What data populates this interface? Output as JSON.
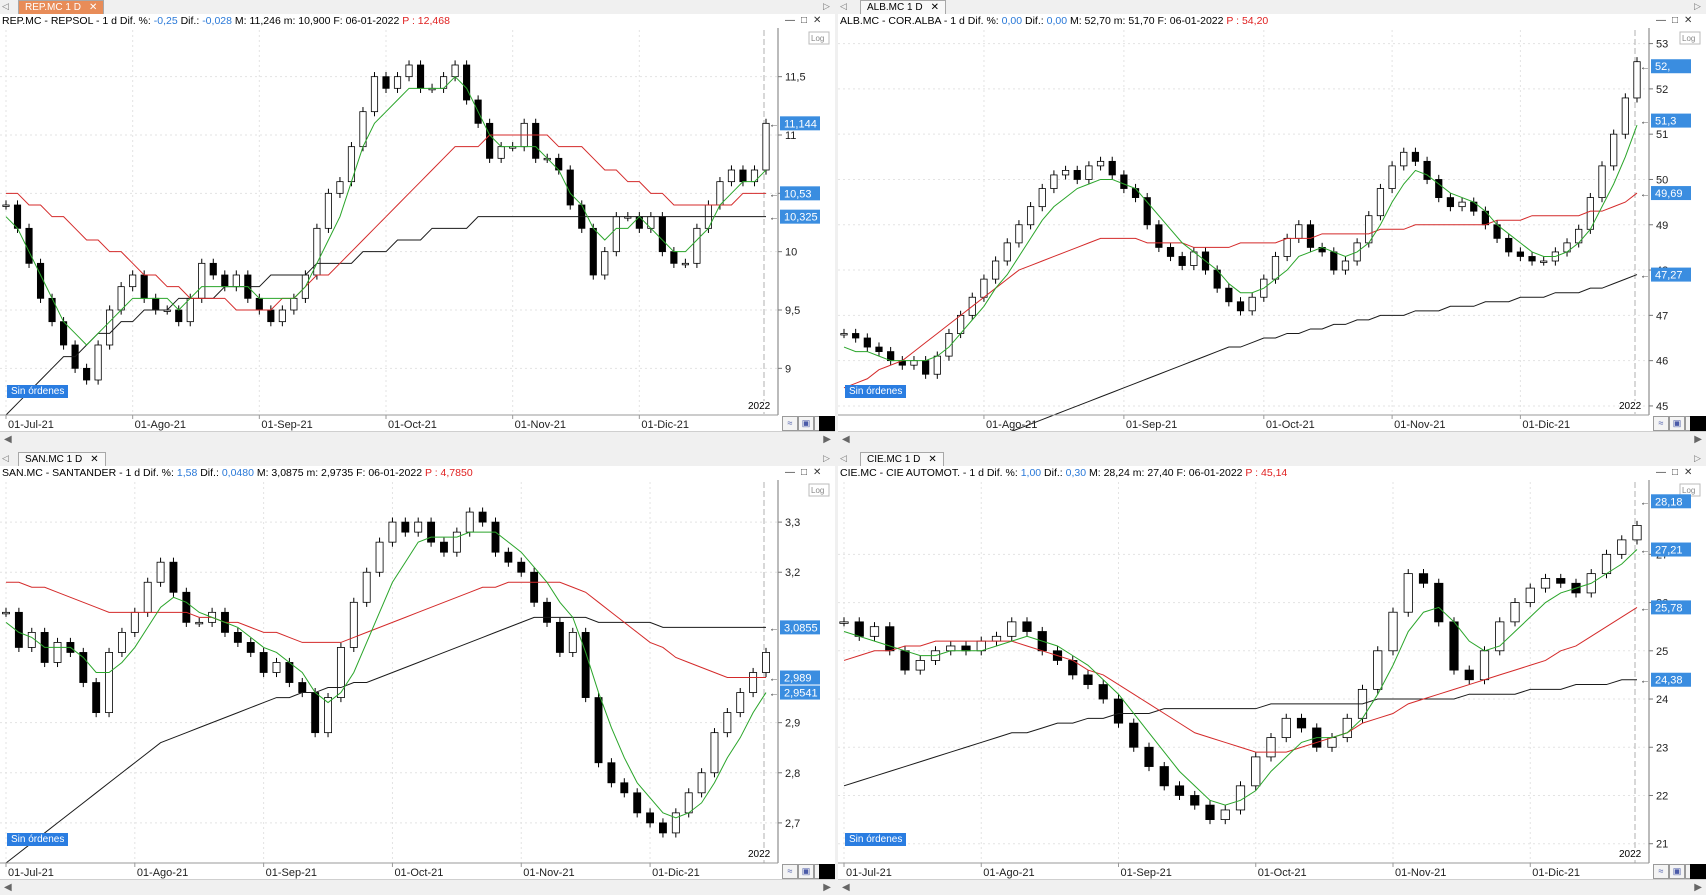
{
  "panels": [
    {
      "tab_label": "REP.MC 1 D",
      "tab_active": true,
      "info": {
        "name": "REP.MC - REPSOL - ",
        "period": " 1 d",
        "difp_label": "  Dif. %: ",
        "difp": "-0,25",
        "dif_label": "  Dif.: ",
        "dif": "-0,028",
        "mm": "  M: 11,246  m: 10,900  F: 06-01-2022  ",
        "p_label": "P : ",
        "p": "12,468"
      },
      "order_badge": "Sin órdenes",
      "year_label": "2022",
      "log_label": "Log",
      "x_ticks": [
        "01-Jul-21",
        "01-Ago-21",
        "01-Sep-21",
        "01-Oct-21",
        "01-Nov-21",
        "01-Dic-21"
      ],
      "y_ticks": [
        "11,5",
        "11",
        "10,5",
        "10",
        "9,5",
        "9"
      ],
      "price_tags": [
        "11,144",
        "10,53",
        "10,325"
      ]
    },
    {
      "tab_label": "ALB.MC 1 D",
      "tab_active": false,
      "info": {
        "name": "ALB.MC - COR.ALBA - ",
        "period": " 1 d",
        "difp_label": "  Dif. %: ",
        "difp": "0,00",
        "dif_label": "  Dif.: ",
        "dif": "0,00",
        "mm": "  M: 52,70  m: 51,70  F: 06-01-2022  ",
        "p_label": "P : ",
        "p": "54,20"
      },
      "order_badge": "Sin órdenes",
      "year_label": "2022",
      "log_label": "Log",
      "x_ticks": [
        "01-Ago-21",
        "01-Sep-21",
        "01-Oct-21",
        "01-Nov-21",
        "01-Dic-21"
      ],
      "y_ticks": [
        "53",
        "52",
        "51",
        "50",
        "49",
        "48",
        "47",
        "46",
        "45"
      ],
      "price_tags": [
        "52,",
        "51,3",
        "49,69",
        "47,27"
      ]
    },
    {
      "tab_label": "SAN.MC 1 D",
      "tab_active": false,
      "info": {
        "name": "SAN.MC - SANTANDER - ",
        "period": " 1 d",
        "difp_label": "  Dif. %: ",
        "difp": "1,58",
        "dif_label": "  Dif.: ",
        "dif": "0,0480",
        "mm": "  M: 3,0875  m: 2,9735  F: 06-01-2022  ",
        "p_label": "P : ",
        "p": "4,7850"
      },
      "order_badge": "Sin órdenes",
      "year_label": "2022",
      "log_label": "Log",
      "x_ticks": [
        "01-Jul-21",
        "01-Ago-21",
        "01-Sep-21",
        "01-Oct-21",
        "01-Nov-21",
        "01-Dic-21"
      ],
      "y_ticks": [
        "3,3",
        "3,2",
        "2,9",
        "2,8",
        "2,7"
      ],
      "price_tags": [
        "3,0855",
        "2,989",
        "2,9541"
      ]
    },
    {
      "tab_label": "CIE.MC 1 D",
      "tab_active": false,
      "info": {
        "name": "CIE.MC - CIE AUTOMOT. - ",
        "period": " 1 d",
        "difp_label": "  Dif. %: ",
        "difp": "1,00",
        "dif_label": "  Dif.: ",
        "dif": "0,30",
        "mm": "  M: 28,24  m: 27,40  F: 06-01-2022  ",
        "p_label": "P : ",
        "p": "45,14"
      },
      "order_badge": "Sin órdenes",
      "year_label": "2022",
      "log_label": "Log",
      "x_ticks": [
        "01-Jul-21",
        "01-Ago-21",
        "01-Sep-21",
        "01-Oct-21",
        "01-Nov-21",
        "01-Dic-21"
      ],
      "y_ticks": [
        "27",
        "26",
        "25",
        "24",
        "23",
        "22",
        "21"
      ],
      "price_tags": [
        "28,18",
        "27,21",
        "25,78",
        "24,38"
      ]
    }
  ],
  "chart_data": [
    {
      "type": "candlestick",
      "title": "REP.MC - REPSOL",
      "ylim": [
        8.6,
        11.9
      ],
      "y_ticks": [
        11.5,
        11,
        10.5,
        10,
        9.5,
        9
      ],
      "log_scale_option": true,
      "closes": [
        10.4,
        10.2,
        9.9,
        9.6,
        9.4,
        9.2,
        9.0,
        8.9,
        9.2,
        9.5,
        9.7,
        9.8,
        9.6,
        9.5,
        9.5,
        9.4,
        9.6,
        9.9,
        9.8,
        9.7,
        9.8,
        9.6,
        9.5,
        9.4,
        9.5,
        9.6,
        9.8,
        10.2,
        10.5,
        10.6,
        10.9,
        11.2,
        11.5,
        11.4,
        11.5,
        11.6,
        11.4,
        11.4,
        11.5,
        11.6,
        11.3,
        11.1,
        10.8,
        10.9,
        10.9,
        11.1,
        10.8,
        10.8,
        10.7,
        10.4,
        10.2,
        9.8,
        10.0,
        10.3,
        10.3,
        10.2,
        10.3,
        10.0,
        9.9,
        9.9,
        10.2,
        10.4,
        10.6,
        10.7,
        10.6,
        10.7,
        11.1
      ],
      "ma_short": [
        10.3,
        10.2,
        10.0,
        9.8,
        9.6,
        9.4,
        9.3,
        9.2,
        9.3,
        9.4,
        9.5,
        9.6,
        9.6,
        9.6,
        9.6,
        9.5,
        9.6,
        9.7,
        9.7,
        9.7,
        9.7,
        9.7,
        9.6,
        9.6,
        9.6,
        9.6,
        9.7,
        9.9,
        10.1,
        10.3,
        10.6,
        10.9,
        11.1,
        11.2,
        11.3,
        11.4,
        11.4,
        11.4,
        11.4,
        11.5,
        11.4,
        11.2,
        11.0,
        10.9,
        10.9,
        10.9,
        10.9,
        10.8,
        10.7,
        10.5,
        10.4,
        10.2,
        10.1,
        10.2,
        10.2,
        10.3,
        10.2,
        10.1,
        10.0,
        10.0,
        10.1,
        10.2,
        10.4,
        10.5,
        10.6,
        10.6,
        10.7
      ],
      "ma_mid": [
        10.5,
        10.5,
        10.4,
        10.4,
        10.3,
        10.3,
        10.2,
        10.1,
        10.1,
        10.0,
        10.0,
        9.9,
        9.8,
        9.8,
        9.7,
        9.7,
        9.6,
        9.6,
        9.6,
        9.6,
        9.5,
        9.5,
        9.5,
        9.5,
        9.6,
        9.6,
        9.7,
        9.8,
        9.8,
        9.9,
        10.0,
        10.1,
        10.2,
        10.3,
        10.4,
        10.5,
        10.6,
        10.7,
        10.8,
        10.9,
        10.9,
        10.9,
        11.0,
        11.0,
        11.0,
        11.0,
        11.0,
        11.0,
        10.9,
        10.9,
        10.9,
        10.8,
        10.7,
        10.7,
        10.6,
        10.6,
        10.5,
        10.5,
        10.4,
        10.4,
        10.4,
        10.4,
        10.4,
        10.4,
        10.5,
        10.5,
        10.5
      ],
      "ma_long": [
        8.6,
        8.7,
        8.8,
        8.9,
        9.0,
        9.1,
        9.1,
        9.2,
        9.3,
        9.3,
        9.4,
        9.4,
        9.5,
        9.5,
        9.5,
        9.6,
        9.6,
        9.6,
        9.6,
        9.7,
        9.7,
        9.7,
        9.7,
        9.8,
        9.8,
        9.8,
        9.8,
        9.9,
        9.9,
        9.9,
        9.9,
        10.0,
        10.0,
        10.0,
        10.1,
        10.1,
        10.1,
        10.2,
        10.2,
        10.2,
        10.2,
        10.3,
        10.3,
        10.3,
        10.3,
        10.3,
        10.3,
        10.3,
        10.3,
        10.3,
        10.3,
        10.3,
        10.3,
        10.3,
        10.3,
        10.3,
        10.3,
        10.3,
        10.3,
        10.3,
        10.3,
        10.3,
        10.3,
        10.3,
        10.3,
        10.3,
        10.3
      ],
      "x_ticks": [
        "01-Jul-21",
        "01-Ago-21",
        "01-Sep-21",
        "01-Oct-21",
        "01-Nov-21",
        "01-Dic-21"
      ],
      "x_tick_index": [
        0,
        11,
        22,
        33,
        44,
        55
      ]
    },
    {
      "type": "candlestick",
      "title": "ALB.MC - COR.ALBA",
      "ylim": [
        44.8,
        53.3
      ],
      "y_ticks": [
        53,
        52,
        51,
        50,
        49,
        48,
        47,
        46,
        45
      ],
      "log_scale_option": true,
      "closes": [
        46.6,
        46.5,
        46.3,
        46.2,
        46.0,
        45.9,
        46.0,
        45.7,
        46.1,
        46.6,
        47.0,
        47.4,
        47.8,
        48.2,
        48.6,
        49.0,
        49.4,
        49.8,
        50.1,
        50.2,
        50.0,
        50.3,
        50.4,
        50.1,
        49.8,
        49.6,
        49.0,
        48.5,
        48.3,
        48.1,
        48.4,
        48.0,
        47.6,
        47.3,
        47.1,
        47.4,
        47.8,
        48.3,
        48.7,
        49.0,
        48.5,
        48.4,
        48.0,
        48.2,
        48.6,
        49.2,
        49.8,
        50.3,
        50.6,
        50.4,
        50.0,
        49.6,
        49.4,
        49.5,
        49.3,
        49.0,
        48.7,
        48.4,
        48.3,
        48.2,
        48.2,
        48.4,
        48.6,
        48.9,
        49.6,
        50.3,
        51.0,
        51.8,
        52.6
      ],
      "ma_short": [
        46.3,
        46.2,
        46.2,
        46.1,
        46.0,
        46.0,
        46.0,
        46.0,
        46.1,
        46.3,
        46.6,
        46.9,
        47.2,
        47.6,
        47.9,
        48.3,
        48.7,
        49.1,
        49.4,
        49.6,
        49.8,
        49.9,
        50.0,
        50.0,
        49.9,
        49.8,
        49.5,
        49.2,
        48.9,
        48.6,
        48.4,
        48.2,
        48.0,
        47.7,
        47.5,
        47.5,
        47.6,
        47.8,
        48.0,
        48.3,
        48.4,
        48.5,
        48.4,
        48.3,
        48.4,
        48.6,
        49.0,
        49.5,
        49.9,
        50.2,
        50.1,
        49.9,
        49.7,
        49.6,
        49.5,
        49.3,
        49.0,
        48.8,
        48.6,
        48.4,
        48.3,
        48.3,
        48.4,
        48.6,
        48.9,
        49.4,
        49.9,
        50.5,
        51.2
      ],
      "ma_mid": [
        45.4,
        45.5,
        45.6,
        45.8,
        45.9,
        46.0,
        46.2,
        46.4,
        46.6,
        46.8,
        47.0,
        47.2,
        47.4,
        47.6,
        47.8,
        48.0,
        48.1,
        48.2,
        48.3,
        48.4,
        48.5,
        48.6,
        48.7,
        48.7,
        48.7,
        48.7,
        48.6,
        48.6,
        48.6,
        48.6,
        48.5,
        48.5,
        48.5,
        48.5,
        48.6,
        48.6,
        48.6,
        48.6,
        48.7,
        48.7,
        48.7,
        48.8,
        48.8,
        48.8,
        48.8,
        48.8,
        48.9,
        48.9,
        48.9,
        49.0,
        49.0,
        49.0,
        49.0,
        49.0,
        49.0,
        49.0,
        49.1,
        49.1,
        49.1,
        49.2,
        49.2,
        49.2,
        49.2,
        49.2,
        49.3,
        49.3,
        49.4,
        49.5,
        49.7
      ],
      "ma_long": [
        43.0,
        43.1,
        43.2,
        43.3,
        43.4,
        43.5,
        43.6,
        43.7,
        43.8,
        43.9,
        44.0,
        44.1,
        44.2,
        44.3,
        44.4,
        44.5,
        44.6,
        44.7,
        44.8,
        44.9,
        45.0,
        45.1,
        45.2,
        45.3,
        45.4,
        45.5,
        45.6,
        45.7,
        45.8,
        45.9,
        46.0,
        46.1,
        46.2,
        46.3,
        46.3,
        46.4,
        46.5,
        46.5,
        46.6,
        46.6,
        46.7,
        46.7,
        46.8,
        46.8,
        46.9,
        46.9,
        47.0,
        47.0,
        47.0,
        47.1,
        47.1,
        47.1,
        47.2,
        47.2,
        47.2,
        47.3,
        47.3,
        47.3,
        47.4,
        47.4,
        47.4,
        47.5,
        47.5,
        47.5,
        47.6,
        47.6,
        47.7,
        47.8,
        47.9
      ],
      "x_ticks": [
        "01-Ago-21",
        "01-Sep-21",
        "01-Oct-21",
        "01-Nov-21",
        "01-Dic-21"
      ],
      "x_tick_index": [
        12,
        24,
        36,
        47,
        58
      ]
    },
    {
      "type": "candlestick",
      "title": "SAN.MC - SANTANDER",
      "ylim": [
        2.62,
        3.38
      ],
      "y_ticks": [
        3.3,
        3.2,
        2.9,
        2.8,
        2.7
      ],
      "log_scale_option": true,
      "closes": [
        3.12,
        3.05,
        3.08,
        3.02,
        3.06,
        3.04,
        2.98,
        2.92,
        3.04,
        3.08,
        3.12,
        3.18,
        3.22,
        3.16,
        3.1,
        3.1,
        3.12,
        3.08,
        3.06,
        3.04,
        3.0,
        3.02,
        2.98,
        2.96,
        2.88,
        2.95,
        3.05,
        3.14,
        3.2,
        3.26,
        3.3,
        3.28,
        3.3,
        3.26,
        3.24,
        3.28,
        3.32,
        3.3,
        3.24,
        3.22,
        3.2,
        3.14,
        3.1,
        3.04,
        3.08,
        2.95,
        2.82,
        2.78,
        2.76,
        2.72,
        2.7,
        2.68,
        2.72,
        2.76,
        2.8,
        2.88,
        2.92,
        2.96,
        3.0,
        3.04
      ],
      "ma_short": [
        3.1,
        3.08,
        3.07,
        3.05,
        3.05,
        3.05,
        3.03,
        3.0,
        3.0,
        3.02,
        3.05,
        3.09,
        3.13,
        3.15,
        3.14,
        3.12,
        3.11,
        3.1,
        3.09,
        3.07,
        3.05,
        3.04,
        3.02,
        3.0,
        2.96,
        2.94,
        2.96,
        3.0,
        3.06,
        3.12,
        3.18,
        3.22,
        3.26,
        3.27,
        3.27,
        3.27,
        3.28,
        3.28,
        3.28,
        3.26,
        3.24,
        3.21,
        3.18,
        3.14,
        3.11,
        3.04,
        2.96,
        2.89,
        2.83,
        2.78,
        2.75,
        2.72,
        2.71,
        2.72,
        2.74,
        2.78,
        2.83,
        2.87,
        2.92,
        2.96
      ],
      "ma_mid": [
        3.18,
        3.18,
        3.17,
        3.17,
        3.16,
        3.15,
        3.14,
        3.13,
        3.12,
        3.12,
        3.12,
        3.12,
        3.12,
        3.12,
        3.12,
        3.11,
        3.11,
        3.1,
        3.1,
        3.09,
        3.08,
        3.08,
        3.07,
        3.06,
        3.06,
        3.06,
        3.06,
        3.07,
        3.08,
        3.09,
        3.1,
        3.11,
        3.12,
        3.13,
        3.14,
        3.15,
        3.16,
        3.17,
        3.17,
        3.18,
        3.18,
        3.18,
        3.18,
        3.18,
        3.17,
        3.16,
        3.14,
        3.12,
        3.1,
        3.08,
        3.06,
        3.05,
        3.03,
        3.02,
        3.01,
        3.0,
        2.99,
        2.99,
        2.99,
        2.99
      ],
      "ma_long": [
        2.62,
        2.64,
        2.66,
        2.68,
        2.7,
        2.72,
        2.74,
        2.76,
        2.78,
        2.8,
        2.82,
        2.84,
        2.86,
        2.87,
        2.88,
        2.89,
        2.9,
        2.91,
        2.92,
        2.93,
        2.94,
        2.95,
        2.95,
        2.96,
        2.96,
        2.97,
        2.97,
        2.98,
        2.98,
        2.99,
        3.0,
        3.01,
        3.02,
        3.03,
        3.04,
        3.05,
        3.06,
        3.07,
        3.08,
        3.09,
        3.1,
        3.11,
        3.11,
        3.11,
        3.11,
        3.11,
        3.1,
        3.1,
        3.1,
        3.1,
        3.1,
        3.09,
        3.09,
        3.09,
        3.09,
        3.09,
        3.09,
        3.09,
        3.09,
        3.09
      ],
      "x_ticks": [
        "01-Jul-21",
        "01-Ago-21",
        "01-Sep-21",
        "01-Oct-21",
        "01-Nov-21",
        "01-Dic-21"
      ],
      "x_tick_index": [
        0,
        10,
        20,
        30,
        40,
        50
      ]
    },
    {
      "type": "candlestick",
      "title": "CIE.MC - CIE AUTOMOT.",
      "ylim": [
        20.6,
        28.5
      ],
      "y_ticks": [
        27,
        26,
        25,
        24,
        23,
        22,
        21
      ],
      "log_scale_option": true,
      "closes": [
        25.6,
        25.3,
        25.5,
        25.0,
        24.6,
        24.8,
        25.0,
        25.1,
        25.0,
        25.2,
        25.3,
        25.6,
        25.4,
        25.0,
        24.8,
        24.5,
        24.3,
        24.0,
        23.5,
        23.0,
        22.6,
        22.2,
        22.0,
        21.8,
        21.5,
        21.7,
        22.2,
        22.8,
        23.2,
        23.6,
        23.4,
        23.0,
        23.2,
        23.6,
        24.2,
        25.0,
        25.8,
        26.6,
        26.4,
        25.6,
        24.6,
        24.4,
        25.0,
        25.6,
        26.0,
        26.3,
        26.5,
        26.4,
        26.2,
        26.6,
        27.0,
        27.3,
        27.6
      ],
      "ma_short": [
        25.4,
        25.3,
        25.2,
        25.1,
        25.0,
        24.9,
        24.9,
        25.0,
        25.0,
        25.0,
        25.1,
        25.2,
        25.3,
        25.2,
        25.1,
        24.9,
        24.7,
        24.4,
        24.1,
        23.7,
        23.3,
        22.9,
        22.5,
        22.2,
        21.9,
        21.8,
        21.9,
        22.1,
        22.5,
        22.8,
        23.1,
        23.2,
        23.2,
        23.3,
        23.6,
        24.1,
        24.7,
        25.4,
        25.8,
        25.9,
        25.6,
        25.2,
        25.0,
        25.1,
        25.4,
        25.7,
        26.0,
        26.2,
        26.3,
        26.4,
        26.6,
        26.8,
        27.1
      ],
      "ma_mid": [
        24.8,
        24.9,
        25.0,
        25.0,
        25.1,
        25.1,
        25.2,
        25.2,
        25.2,
        25.2,
        25.2,
        25.2,
        25.1,
        25.0,
        24.9,
        24.8,
        24.6,
        24.5,
        24.3,
        24.1,
        23.9,
        23.7,
        23.5,
        23.3,
        23.2,
        23.1,
        23.0,
        22.9,
        22.9,
        22.9,
        23.0,
        23.1,
        23.2,
        23.3,
        23.5,
        23.6,
        23.7,
        23.9,
        24.0,
        24.1,
        24.2,
        24.3,
        24.4,
        24.5,
        24.6,
        24.7,
        24.8,
        25.0,
        25.1,
        25.3,
        25.5,
        25.7,
        25.9
      ],
      "ma_long": [
        22.2,
        22.3,
        22.4,
        22.5,
        22.6,
        22.7,
        22.8,
        22.9,
        23.0,
        23.1,
        23.2,
        23.3,
        23.3,
        23.4,
        23.5,
        23.5,
        23.6,
        23.6,
        23.7,
        23.7,
        23.7,
        23.8,
        23.8,
        23.8,
        23.8,
        23.8,
        23.8,
        23.8,
        23.9,
        23.9,
        23.9,
        23.9,
        23.9,
        23.9,
        23.9,
        24.0,
        24.0,
        24.0,
        24.0,
        24.0,
        24.0,
        24.1,
        24.1,
        24.1,
        24.1,
        24.2,
        24.2,
        24.2,
        24.3,
        24.3,
        24.3,
        24.4,
        24.4
      ],
      "x_ticks": [
        "01-Jul-21",
        "01-Ago-21",
        "01-Sep-21",
        "01-Oct-21",
        "01-Nov-21",
        "01-Dic-21"
      ],
      "x_tick_index": [
        0,
        9,
        18,
        27,
        36,
        45
      ]
    }
  ],
  "colors": {
    "ma_short": "#2aa52a",
    "ma_mid": "#d42a2a",
    "ma_long": "#1a1a1a",
    "tag": "#3a8de0",
    "badge": "#2a7de1",
    "tab_active": "#e88c58"
  }
}
